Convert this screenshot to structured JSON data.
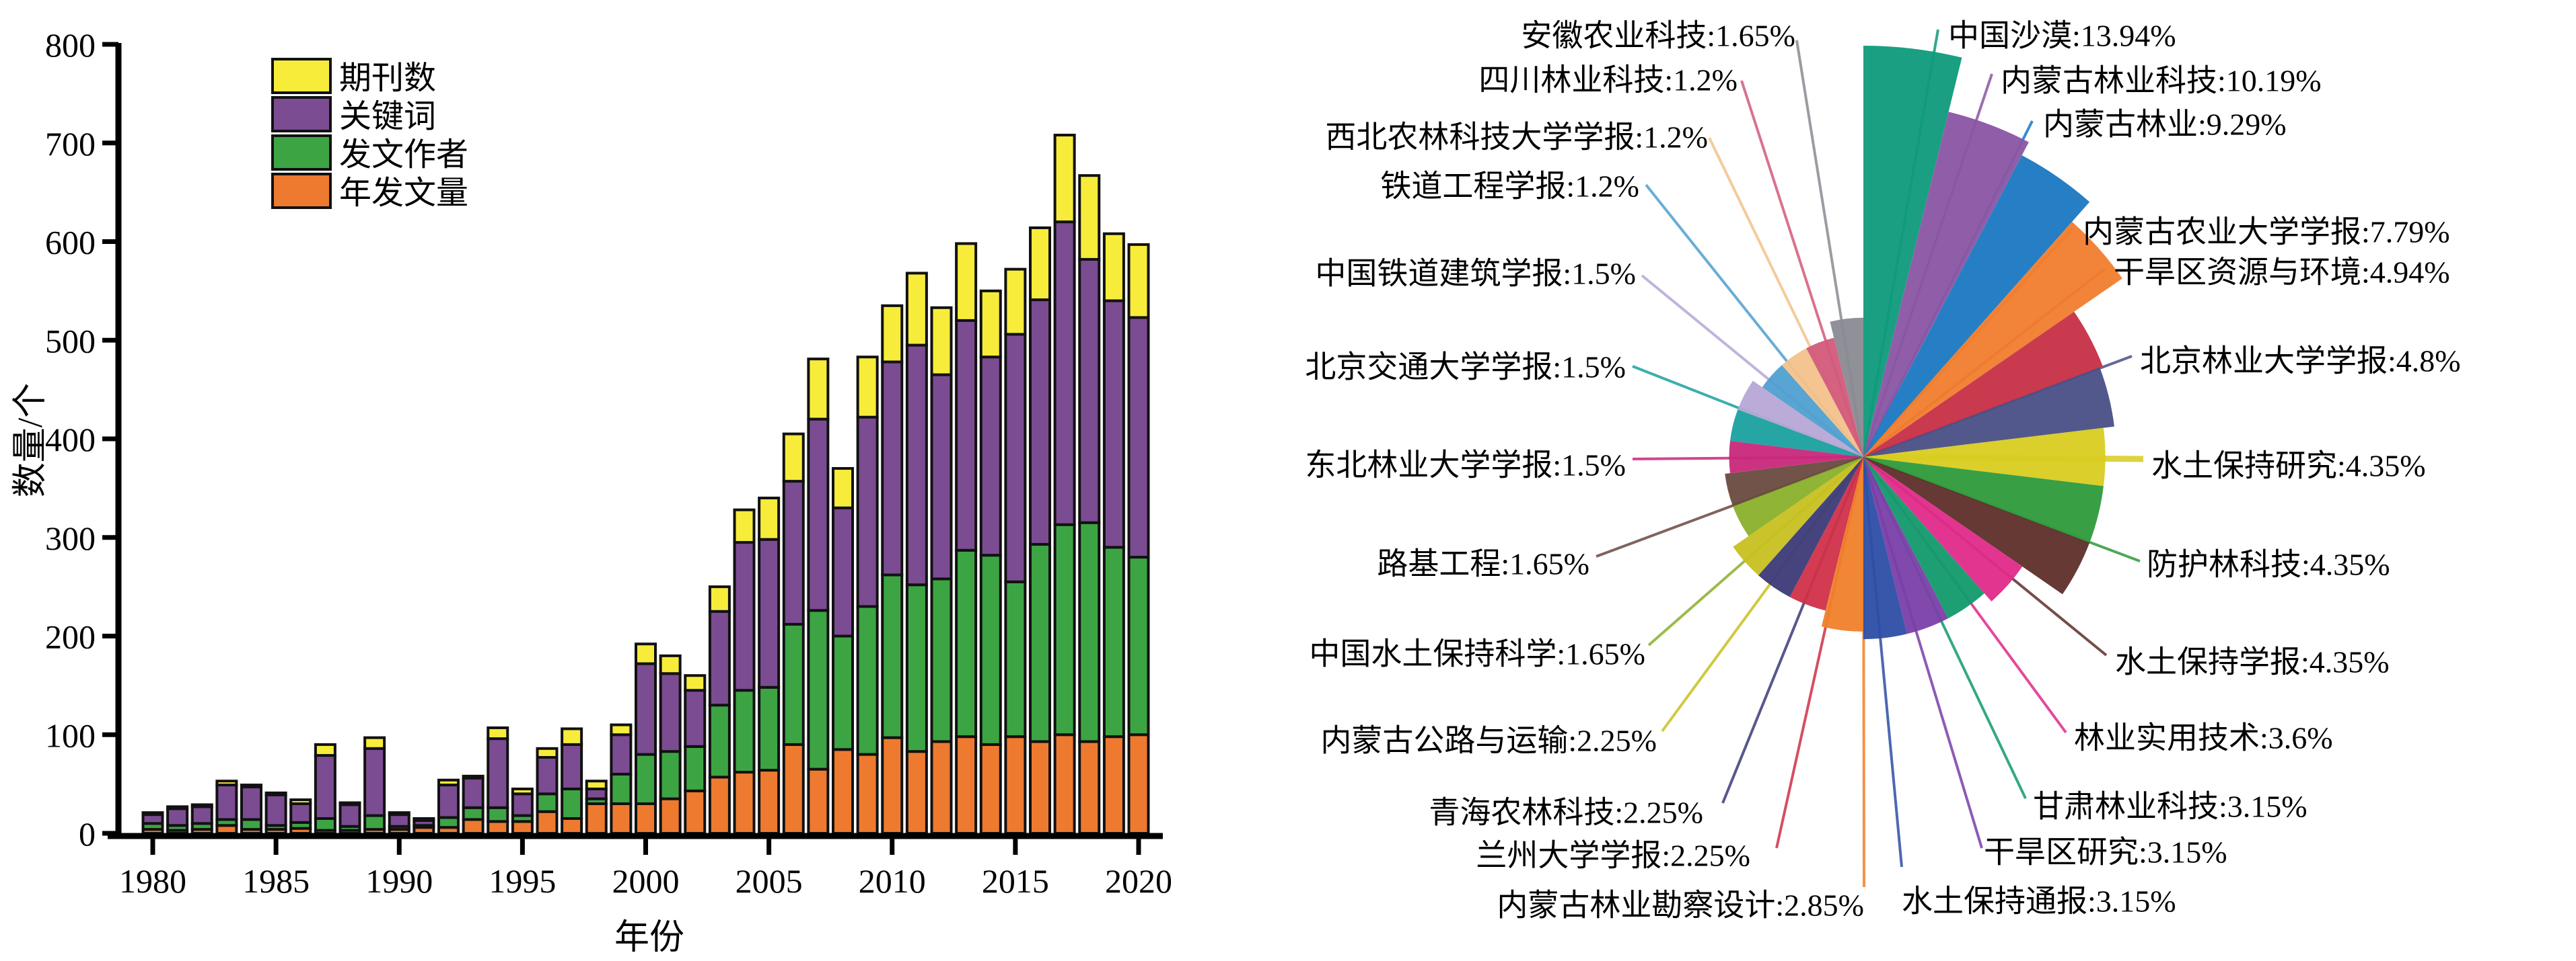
{
  "chart_data": [
    {
      "type": "bar",
      "stacked": true,
      "title": "",
      "xlabel": "年份",
      "ylabel": "数量/个",
      "ylim": [
        0,
        800
      ],
      "yticks": [
        "0",
        "100",
        "200",
        "300",
        "400",
        "500",
        "600",
        "700",
        "800"
      ],
      "xticks": [
        "1980",
        "1985",
        "1990",
        "1995",
        "2000",
        "2005",
        "2010",
        "2015",
        "2020"
      ],
      "legend_placement": "top-left",
      "categories": [
        1980,
        1981,
        1982,
        1983,
        1984,
        1985,
        1986,
        1987,
        1988,
        1989,
        1990,
        1991,
        1992,
        1993,
        1994,
        1995,
        1996,
        1997,
        1998,
        1999,
        2000,
        2001,
        2002,
        2003,
        2004,
        2005,
        2006,
        2007,
        2008,
        2009,
        2010,
        2011,
        2012,
        2013,
        2014,
        2015,
        2016,
        2017,
        2018,
        2019,
        2020
      ],
      "series": [
        {
          "name": "年发文量",
          "color": "#ee7a30",
          "values": [
            4,
            3,
            4,
            8,
            4,
            4,
            5,
            3,
            3,
            4,
            4,
            6,
            6,
            14,
            12,
            12,
            22,
            15,
            30,
            30,
            30,
            35,
            43,
            57,
            62,
            64,
            90,
            65,
            85,
            80,
            97,
            83,
            93,
            98,
            90,
            98,
            93,
            100,
            93,
            98,
            100
          ]
        },
        {
          "name": "发文作者",
          "color": "#3da444",
          "values": [
            6,
            5,
            6,
            6,
            10,
            4,
            6,
            12,
            4,
            14,
            3,
            2,
            10,
            12,
            14,
            6,
            18,
            30,
            5,
            30,
            50,
            48,
            45,
            73,
            83,
            84,
            122,
            161,
            115,
            150,
            165,
            169,
            165,
            189,
            192,
            157,
            200,
            213,
            222,
            192,
            180
          ]
        },
        {
          "name": "关键词",
          "color": "#7b4c92",
          "values": [
            9,
            17,
            17,
            35,
            33,
            31,
            19,
            64,
            22,
            68,
            12,
            5,
            33,
            30,
            70,
            22,
            37,
            45,
            10,
            40,
            92,
            79,
            57,
            95,
            150,
            150,
            145,
            194,
            130,
            192,
            216,
            243,
            207,
            233,
            201,
            251,
            248,
            307,
            267,
            250,
            243
          ]
        },
        {
          "name": "期刊数",
          "color": "#f7ec3a",
          "values": [
            2,
            2,
            2,
            4,
            2,
            2,
            4,
            11,
            2,
            11,
            2,
            2,
            5,
            2,
            11,
            5,
            9,
            16,
            8,
            10,
            20,
            18,
            15,
            25,
            33,
            42,
            48,
            61,
            40,
            61,
            57,
            73,
            68,
            78,
            67,
            66,
            73,
            88,
            85,
            68,
            74
          ]
        }
      ]
    },
    {
      "type": "pie",
      "subtype": "rose",
      "slices": [
        {
          "label": "中国沙漠",
          "value": 13.94,
          "text": "中国沙漠:13.94%",
          "color": "#0f9a7b"
        },
        {
          "label": "内蒙古林业科技",
          "value": 10.19,
          "text": "内蒙古林业科技:10.19%",
          "color": "#8a55a3"
        },
        {
          "label": "内蒙古林业",
          "value": 9.29,
          "text": "内蒙古林业:9.29%",
          "color": "#1a78c2"
        },
        {
          "label": "内蒙古农业大学学报",
          "value": 7.79,
          "text": "内蒙古农业大学学报:7.79%",
          "color": "#f07d2d"
        },
        {
          "label": "干旱区资源与环境",
          "value": 4.94,
          "text": "干旱区资源与环境:4.94%",
          "color": "#c72f45"
        },
        {
          "label": "北京林业大学学报",
          "value": 4.8,
          "text": "北京林业大学学报:4.8%",
          "color": "#4a4f86"
        },
        {
          "label": "水土保持研究",
          "value": 4.35,
          "text": "水土保持研究:4.35%",
          "color": "#d8cc20"
        },
        {
          "label": "防护林科技",
          "value": 4.35,
          "text": "防护林科技:4.35%",
          "color": "#2e9a3a"
        },
        {
          "label": "水土保持学报",
          "value": 4.35,
          "text": "水土保持学报:4.35%",
          "color": "#5e2e2a"
        },
        {
          "label": "林业实用技术",
          "value": 3.6,
          "text": "林业实用技术:3.6%",
          "color": "#e02a8a"
        },
        {
          "label": "甘肃林业科技",
          "value": 3.15,
          "text": "甘肃林业科技:3.15%",
          "color": "#129a6c"
        },
        {
          "label": "干旱区研究",
          "value": 3.15,
          "text": "干旱区研究:3.15%",
          "color": "#7a3fa8"
        },
        {
          "label": "水土保持通报",
          "value": 3.15,
          "text": "水土保持通报:3.15%",
          "color": "#2d4ea6"
        },
        {
          "label": "内蒙古林业勘察设计",
          "value": 2.85,
          "text": "内蒙古林业勘察设计:2.85%",
          "color": "#f0802a"
        },
        {
          "label": "兰州大学学报",
          "value": 2.25,
          "text": "兰州大学学报:2.25%",
          "color": "#d03048"
        },
        {
          "label": "青海农林科技",
          "value": 2.25,
          "text": "青海农林科技:2.25%",
          "color": "#3b3a78"
        },
        {
          "label": "内蒙古公路与运输",
          "value": 2.25,
          "text": "内蒙古公路与运输:2.25%",
          "color": "#c8c020"
        },
        {
          "label": "中国水土保持科学",
          "value": 1.65,
          "text": "中国水土保持科学:1.65%",
          "color": "#8ab02a"
        },
        {
          "label": "路基工程",
          "value": 1.65,
          "text": "路基工程:1.65%",
          "color": "#6a4a40"
        },
        {
          "label": "东北林业大学学报",
          "value": 1.5,
          "text": "东北林业大学学报:1.5%",
          "color": "#c8287a"
        },
        {
          "label": "北京交通大学学报",
          "value": 1.5,
          "text": "北京交通大学学报:1.5%",
          "color": "#1aa0a0"
        },
        {
          "label": "中国铁道建筑学报",
          "value": 1.5,
          "text": "中国铁道建筑学报:1.5%",
          "color": "#b7a6d6"
        },
        {
          "label": "铁道工程学报",
          "value": 1.2,
          "text": "铁道工程学报:1.2%",
          "color": "#4f9fd0"
        },
        {
          "label": "西北农林科技大学学报",
          "value": 1.2,
          "text": "西北农林科技大学学报:1.2%",
          "color": "#f3c28a"
        },
        {
          "label": "四川林业科技",
          "value": 1.2,
          "text": "四川林业科技:1.2%",
          "color": "#d35a7a"
        },
        {
          "label": "安徽农业科技",
          "value": 1.65,
          "text": "安徽农业科技:1.65%",
          "color": "#8a8a92"
        }
      ]
    }
  ]
}
